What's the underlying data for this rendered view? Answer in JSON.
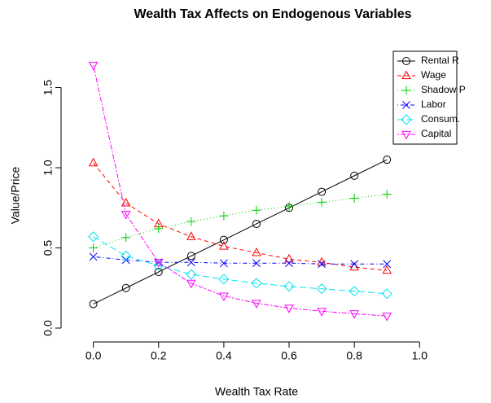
{
  "chart_data": {
    "type": "line",
    "title": "Wealth Tax Affects on Endogenous Variables",
    "x_label": "Wealth Tax Rate",
    "y_label": "Value/Price",
    "x": [
      0.0,
      0.1,
      0.2,
      0.3,
      0.4,
      0.5,
      0.6,
      0.7,
      0.8,
      0.9
    ],
    "xlim": [
      -0.044,
      1.144
    ],
    "xticks": [
      {
        "value": 0,
        "label": "0.0"
      },
      0.2,
      0.4,
      0.6,
      0.8,
      {
        "value": 1,
        "label": "1.0"
      }
    ],
    "ylim": [
      -0.066,
      1.716
    ],
    "yticks": [
      {
        "value": 0,
        "label": "0.0"
      },
      0.5,
      {
        "value": 1,
        "label": "1.0"
      },
      1.5
    ],
    "legend": "top-right",
    "grid": false,
    "series": [
      {
        "name": "Rental R",
        "color": "#000000",
        "marker": "circle",
        "values": [
          0.15,
          0.25,
          0.35,
          0.45,
          0.55,
          0.65,
          0.75,
          0.85,
          0.95,
          1.05
        ]
      },
      {
        "name": "Wage",
        "color": "#ff0000",
        "marker": "triangle-up",
        "values": [
          1.03,
          0.78,
          0.65,
          0.57,
          0.51,
          0.47,
          0.43,
          0.41,
          0.38,
          0.36
        ]
      },
      {
        "name": "Shadow P",
        "color": "#00cd00",
        "marker": "plus",
        "values": [
          0.5,
          0.565,
          0.62,
          0.665,
          0.7,
          0.735,
          0.76,
          0.785,
          0.81,
          0.835
        ]
      },
      {
        "name": "Labor",
        "color": "#0000ff",
        "marker": "cross",
        "values": [
          0.445,
          0.425,
          0.41,
          0.41,
          0.405,
          0.405,
          0.405,
          0.4,
          0.4,
          0.4
        ]
      },
      {
        "name": "Consum.",
        "color": "#00e5ee",
        "marker": "diamond",
        "values": [
          0.57,
          0.45,
          0.39,
          0.335,
          0.305,
          0.28,
          0.26,
          0.245,
          0.23,
          0.215
        ]
      },
      {
        "name": "Capital",
        "color": "#ff00ff",
        "marker": "triangle-down",
        "values": [
          1.64,
          0.71,
          0.41,
          0.28,
          0.2,
          0.155,
          0.125,
          0.105,
          0.09,
          0.075
        ]
      }
    ]
  }
}
